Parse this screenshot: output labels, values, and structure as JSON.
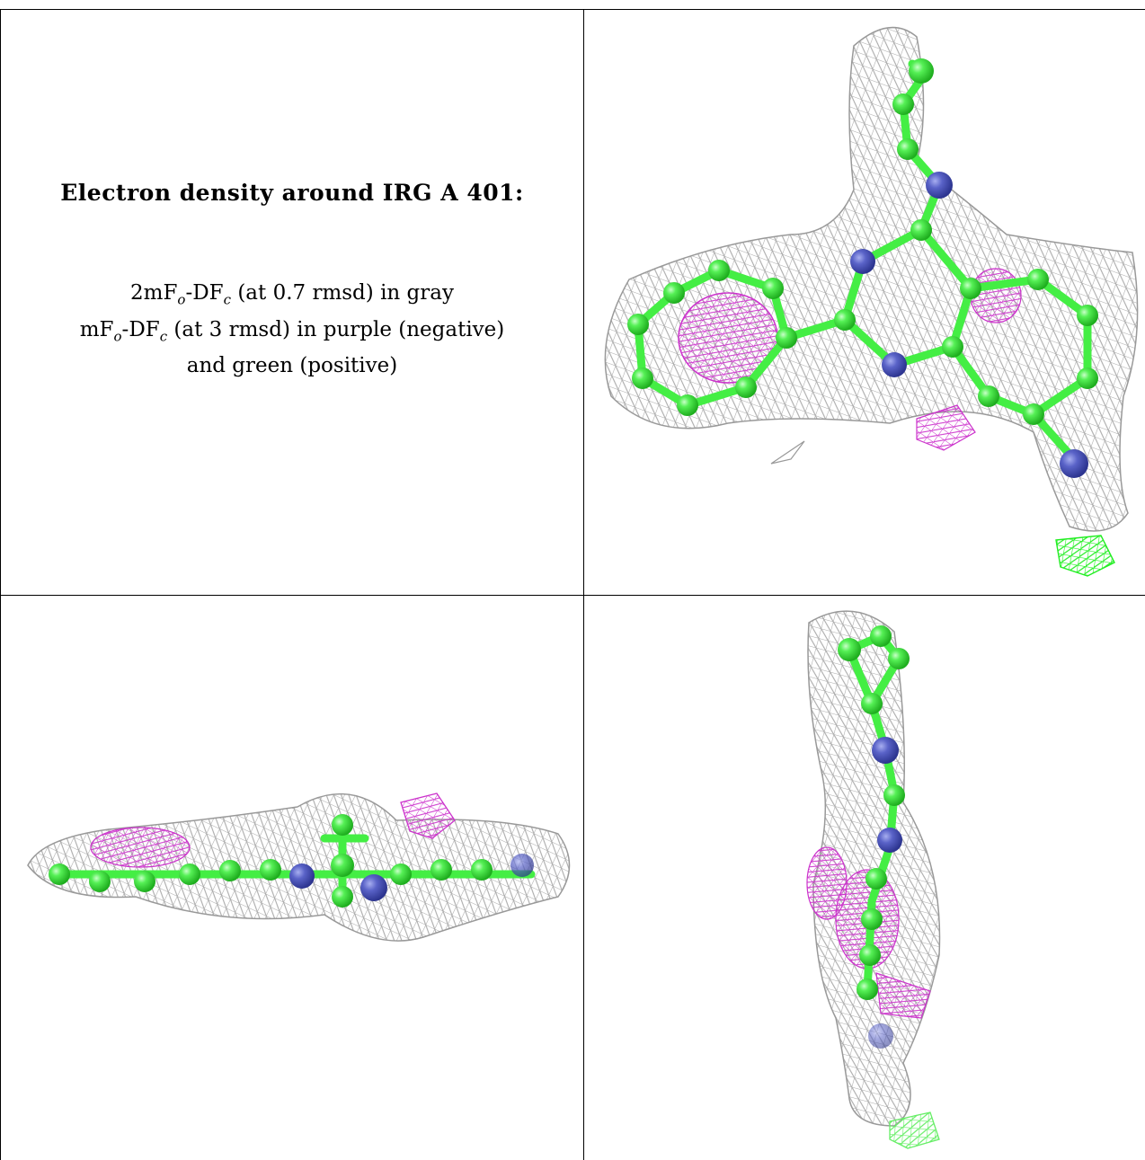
{
  "caption": {
    "title": "Electron density around IRG A 401:",
    "line1_prefix": "2mF",
    "line1_sub1": "o",
    "line1_mid": "-DF",
    "line1_sub2": "c",
    "line1_suffix": " (at 0.7 rmsd) in gray",
    "line2_prefix": "mF",
    "line2_sub1": "o",
    "line2_mid": "-DF",
    "line2_sub2": "c",
    "line2_suffix": " (at 3 rmsd) in purple (negative)",
    "line3": "and green (positive)"
  },
  "colors": {
    "mesh_2fofc": "#a9a9a9",
    "difference_negative": "#cc33cc",
    "difference_positive": "#33ee33",
    "carbon_atom": "#44ee44",
    "nitrogen_atom": "#4c55b8",
    "border": "#000000"
  },
  "views": [
    {
      "id": "top-right",
      "label": ""
    },
    {
      "id": "bottom-left",
      "label": ""
    },
    {
      "id": "bottom-right",
      "label": ""
    }
  ]
}
